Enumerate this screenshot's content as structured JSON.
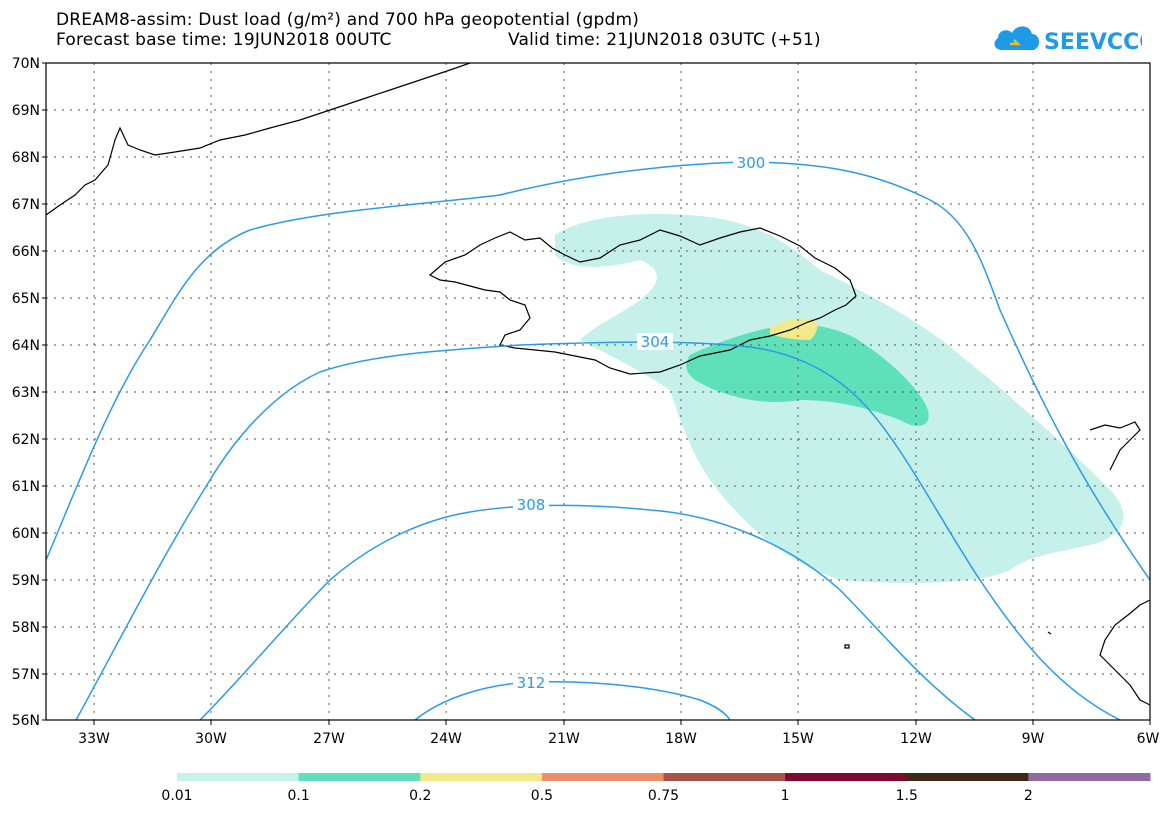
{
  "header": {
    "title_line1": "DREAM8-assim: Dust load (g/m²) and 700 hPa geopotential (gpdm)",
    "base_time": "Forecast base time: 19JUN2018 00UTC",
    "valid_time": "Valid time: 21JUN2018 03UTC (+51)"
  },
  "logo": {
    "text": "SEEVCCC",
    "color": "#1e9be6"
  },
  "map": {
    "lat_labels": [
      "70N",
      "69N",
      "68N",
      "67N",
      "66N",
      "65N",
      "64N",
      "63N",
      "62N",
      "61N",
      "60N",
      "59N",
      "58N",
      "57N",
      "56N"
    ],
    "lon_labels": [
      "33W",
      "30W",
      "27W",
      "24W",
      "21W",
      "18W",
      "15W",
      "12W",
      "9W",
      "6W"
    ],
    "contour_labels": [
      "300",
      "304",
      "308",
      "312"
    ],
    "contour_color": "#2b9be8",
    "coast_color": "#000000"
  },
  "colorbar": {
    "ticks": [
      "0.01",
      "0.1",
      "0.2",
      "0.5",
      "0.75",
      "1",
      "1.5",
      "2"
    ],
    "colors": [
      "#c6f1ea",
      "#5ee0b9",
      "#f2e98a",
      "#e8906a",
      "#a9534a",
      "#7e0a2e",
      "#3c2a15",
      "#916a9f"
    ]
  }
}
